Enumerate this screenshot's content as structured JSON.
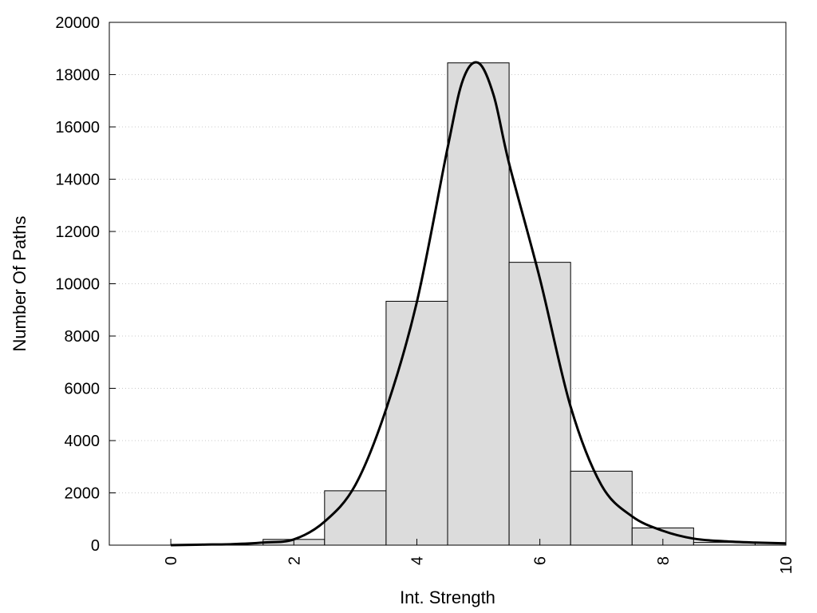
{
  "chart_data": {
    "type": "bar",
    "title": "",
    "xlabel": "Int. Strength",
    "ylabel": "Number Of Paths",
    "xlim": [
      -1,
      10
    ],
    "ylim": [
      0,
      20000
    ],
    "x_ticks": [
      0,
      2,
      4,
      6,
      8,
      10
    ],
    "y_ticks": [
      0,
      2000,
      4000,
      6000,
      8000,
      10000,
      12000,
      14000,
      16000,
      18000,
      20000
    ],
    "grid": "horizontal dotted",
    "bars": {
      "x": [
        0,
        1,
        2,
        3,
        4,
        5,
        6,
        7,
        8,
        9,
        10
      ],
      "values": [
        0,
        0,
        220,
        2080,
        9330,
        18450,
        10820,
        2830,
        660,
        110,
        80
      ],
      "bin_width": 1,
      "fill": "#dcdcdc",
      "stroke": "#000000"
    },
    "curve": {
      "type": "line",
      "x": [
        0,
        0.5,
        1,
        1.5,
        2,
        2.5,
        3,
        3.5,
        4,
        4.5,
        4.75,
        5,
        5.25,
        5.5,
        6,
        6.5,
        7,
        7.5,
        8,
        8.5,
        9,
        9.5,
        10
      ],
      "y": [
        0,
        20,
        40,
        100,
        220,
        900,
        2300,
        5200,
        9300,
        15200,
        17800,
        18450,
        17200,
        14600,
        10200,
        5300,
        2300,
        1100,
        550,
        250,
        150,
        100,
        70
      ],
      "color": "#000000"
    }
  }
}
